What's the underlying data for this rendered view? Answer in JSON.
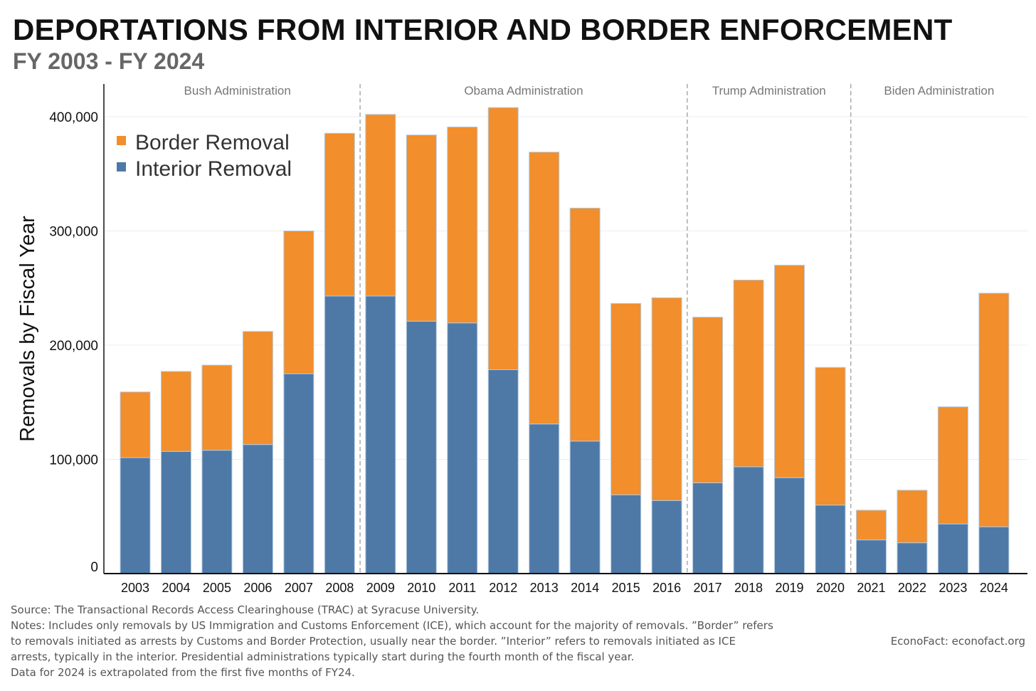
{
  "title": "DEPORTATIONS FROM INTERIOR AND BORDER ENFORCEMENT",
  "subtitle": "FY 2003 - FY 2024",
  "chart_data": {
    "type": "bar",
    "stacked": true,
    "ylabel": "Removals by Fiscal Year",
    "ylim": [
      0,
      425000
    ],
    "yticks": [
      0,
      100000,
      200000,
      300000,
      400000
    ],
    "ytick_labels": [
      "0",
      "100,000",
      "200,000",
      "300,000",
      "400,000"
    ],
    "grid": true,
    "legend_position": "top-left",
    "categories": [
      "2003",
      "2004",
      "2005",
      "2006",
      "2007",
      "2008",
      "2009",
      "2010",
      "2011",
      "2012",
      "2013",
      "2014",
      "2015",
      "2016",
      "2017",
      "2018",
      "2019",
      "2020",
      "2021",
      "2022",
      "2023",
      "2024"
    ],
    "series": [
      {
        "name": "Interior Removal",
        "color": "#4e79a7",
        "values": [
          101500,
          107000,
          108000,
          113000,
          175000,
          243000,
          243000,
          221000,
          219500,
          178500,
          131000,
          116000,
          69000,
          64000,
          79500,
          93500,
          84000,
          60000,
          29500,
          27000,
          43500,
          41000
        ]
      },
      {
        "name": "Border Removal",
        "color": "#f28e2b",
        "values": [
          57500,
          70000,
          74500,
          99000,
          125000,
          142500,
          159000,
          163000,
          171500,
          229500,
          238000,
          204000,
          167500,
          177500,
          145000,
          163500,
          186000,
          120500,
          26000,
          46000,
          102500,
          204500
        ]
      }
    ],
    "legend_order": [
      "Border Removal",
      "Interior Removal"
    ],
    "administrations": [
      {
        "label": "Bush Administration",
        "from": "2003",
        "to": "2008"
      },
      {
        "label": "Obama Administration",
        "from": "2009",
        "to": "2016"
      },
      {
        "label": "Trump Administration",
        "from": "2017",
        "to": "2020"
      },
      {
        "label": "Biden Administration",
        "from": "2021",
        "to": "2024"
      }
    ]
  },
  "notes": [
    "Source: The Transactional Records Access Clearinghouse (TRAC) at Syracuse University.",
    "Notes: Includes only removals by US Immigration and Customs Enforcement (ICE), which account for the majority of removals. ”Border” refers",
    "to removals initiated as arrests by Customs and Border Protection, usually near the border. ”Interior” refers to removals initiated as ICE",
    "arrests, typically in the interior. Presidential administrations typically start during the fourth month of the fiscal year.",
    "Data for 2024 is extrapolated from the first five months of FY24."
  ],
  "credit": "EconoFact:   econofact.org"
}
